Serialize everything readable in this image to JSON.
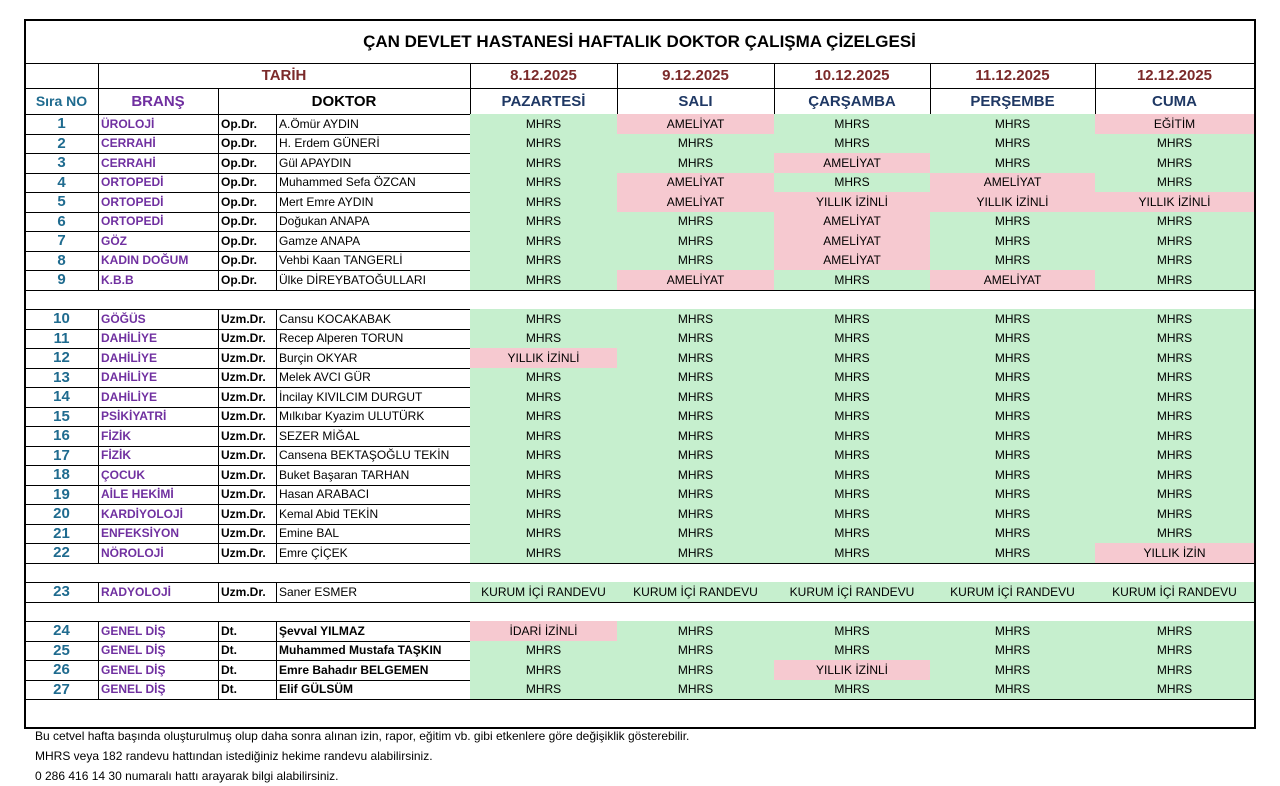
{
  "header": {
    "title": "ÇAN DEVLET HASTANESİ HAFTALIK DOKTOR ÇALIŞMA ÇİZELGESİ",
    "date_label": "TARİH",
    "dates": [
      "8.12.2025",
      "9.12.2025",
      "10.12.2025",
      "11.12.2025",
      "12.12.2025"
    ],
    "columns": [
      "Sıra NO",
      "BRANŞ",
      "DOKTOR"
    ],
    "days": [
      "PAZARTESİ",
      "SALI",
      "ÇARŞAMBA",
      "PERŞEMBE",
      "CUMA"
    ]
  },
  "colors": {
    "green": "#c6efce",
    "pink": "#f6c9d0"
  },
  "groups": [
    {
      "rows": [
        {
          "no": "1",
          "branch": "ÜROLOJİ",
          "title": "Op.Dr.",
          "name": "A.Ömür AYDIN",
          "cells": [
            "MHRS",
            "AMELİYAT",
            "MHRS",
            "MHRS",
            "EĞİTİM"
          ],
          "fills": [
            "green",
            "pink",
            "green",
            "green",
            "pink"
          ]
        },
        {
          "no": "2",
          "branch": "CERRAHİ",
          "title": "Op.Dr.",
          "name": "H. Erdem GÜNERİ",
          "cells": [
            "MHRS",
            "MHRS",
            "MHRS",
            "MHRS",
            "MHRS"
          ],
          "fills": [
            "green",
            "green",
            "green",
            "green",
            "green"
          ]
        },
        {
          "no": "3",
          "branch": "CERRAHİ",
          "title": "Op.Dr.",
          "name": "Gül APAYDIN",
          "cells": [
            "MHRS",
            "MHRS",
            "AMELİYAT",
            "MHRS",
            "MHRS"
          ],
          "fills": [
            "green",
            "green",
            "pink",
            "green",
            "green"
          ]
        },
        {
          "no": "4",
          "branch": "ORTOPEDİ",
          "title": "Op.Dr.",
          "name": "Muhammed Sefa ÖZCAN",
          "cells": [
            "MHRS",
            "AMELİYAT",
            "MHRS",
            "AMELİYAT",
            "MHRS"
          ],
          "fills": [
            "green",
            "pink",
            "green",
            "pink",
            "green"
          ]
        },
        {
          "no": "5",
          "branch": "ORTOPEDİ",
          "title": "Op.Dr.",
          "name": "Mert Emre AYDIN",
          "cells": [
            "MHRS",
            "AMELİYAT",
            "YILLIK İZİNLİ",
            "YILLIK İZİNLİ",
            "YILLIK İZİNLİ"
          ],
          "fills": [
            "green",
            "pink",
            "pink",
            "pink",
            "pink"
          ]
        },
        {
          "no": "6",
          "branch": "ORTOPEDİ",
          "title": "Op.Dr.",
          "name": "Doğukan ANAPA",
          "cells": [
            "MHRS",
            "MHRS",
            "AMELİYAT",
            "MHRS",
            "MHRS"
          ],
          "fills": [
            "green",
            "green",
            "pink",
            "green",
            "green"
          ]
        },
        {
          "no": "7",
          "branch": "GÖZ",
          "title": "Op.Dr.",
          "name": "Gamze ANAPA",
          "cells": [
            "MHRS",
            "MHRS",
            "AMELİYAT",
            "MHRS",
            "MHRS"
          ],
          "fills": [
            "green",
            "green",
            "pink",
            "green",
            "green"
          ]
        },
        {
          "no": "8",
          "branch": "KADIN DOĞUM",
          "title": "Op.Dr.",
          "name": "Vehbi Kaan TANGERLİ",
          "cells": [
            "MHRS",
            "MHRS",
            "AMELİYAT",
            "MHRS",
            "MHRS"
          ],
          "fills": [
            "green",
            "green",
            "pink",
            "green",
            "green"
          ]
        },
        {
          "no": "9",
          "branch": "K.B.B",
          "title": "Op.Dr.",
          "name": "Ülke DİREYBATOĞULLARI",
          "cells": [
            "MHRS",
            "AMELİYAT",
            "MHRS",
            "AMELİYAT",
            "MHRS"
          ],
          "fills": [
            "green",
            "pink",
            "green",
            "pink",
            "green"
          ]
        }
      ]
    },
    {
      "rows": [
        {
          "no": "10",
          "branch": "GÖĞÜS",
          "title": "Uzm.Dr.",
          "name": "Cansu KOCAKABAK",
          "cells": [
            "MHRS",
            "MHRS",
            "MHRS",
            "MHRS",
            "MHRS"
          ],
          "fills": [
            "green",
            "green",
            "green",
            "green",
            "green"
          ]
        },
        {
          "no": "11",
          "branch": "DAHİLİYE",
          "title": "Uzm.Dr.",
          "name": "Recep Alperen TORUN",
          "cells": [
            "MHRS",
            "MHRS",
            "MHRS",
            "MHRS",
            "MHRS"
          ],
          "fills": [
            "green",
            "green",
            "green",
            "green",
            "green"
          ]
        },
        {
          "no": "12",
          "branch": "DAHİLİYE",
          "title": "Uzm.Dr.",
          "name": "Burçin OKYAR",
          "cells": [
            "YILLIK İZİNLİ",
            "MHRS",
            "MHRS",
            "MHRS",
            "MHRS"
          ],
          "fills": [
            "pink",
            "green",
            "green",
            "green",
            "green"
          ]
        },
        {
          "no": "13",
          "branch": "DAHİLİYE",
          "title": "Uzm.Dr.",
          "name": "Melek AVCI GÜR",
          "cells": [
            "MHRS",
            "MHRS",
            "MHRS",
            "MHRS",
            "MHRS"
          ],
          "fills": [
            "green",
            "green",
            "green",
            "green",
            "green"
          ]
        },
        {
          "no": "14",
          "branch": "DAHİLİYE",
          "title": "Uzm.Dr.",
          "name": "İncilay KIVILCIM DURGUT",
          "cells": [
            "MHRS",
            "MHRS",
            "MHRS",
            "MHRS",
            "MHRS"
          ],
          "fills": [
            "green",
            "green",
            "green",
            "green",
            "green"
          ]
        },
        {
          "no": "15",
          "branch": "PSİKİYATRİ",
          "title": "Uzm.Dr.",
          "name": "Mılkıbar Kyazim ULUTÜRK",
          "cells": [
            "MHRS",
            "MHRS",
            "MHRS",
            "MHRS",
            "MHRS"
          ],
          "fills": [
            "green",
            "green",
            "green",
            "green",
            "green"
          ]
        },
        {
          "no": "16",
          "branch": "FİZİK",
          "title": "Uzm.Dr.",
          "name": "SEZER MİĞAL",
          "cells": [
            "MHRS",
            "MHRS",
            "MHRS",
            "MHRS",
            "MHRS"
          ],
          "fills": [
            "green",
            "green",
            "green",
            "green",
            "green"
          ]
        },
        {
          "no": "17",
          "branch": "FİZİK",
          "title": "Uzm.Dr.",
          "name": "Cansena BEKTAŞOĞLU TEKİN",
          "cells": [
            "MHRS",
            "MHRS",
            "MHRS",
            "MHRS",
            "MHRS"
          ],
          "fills": [
            "green",
            "green",
            "green",
            "green",
            "green"
          ]
        },
        {
          "no": "18",
          "branch": "ÇOCUK",
          "title": "Uzm.Dr.",
          "name": "Buket Başaran TARHAN",
          "cells": [
            "MHRS",
            "MHRS",
            "MHRS",
            "MHRS",
            "MHRS"
          ],
          "fills": [
            "green",
            "green",
            "green",
            "green",
            "green"
          ]
        },
        {
          "no": "19",
          "branch": "AİLE HEKİMİ",
          "title": "Uzm.Dr.",
          "name": "Hasan ARABACI",
          "cells": [
            "MHRS",
            "MHRS",
            "MHRS",
            "MHRS",
            "MHRS"
          ],
          "fills": [
            "green",
            "green",
            "green",
            "green",
            "green"
          ]
        },
        {
          "no": "20",
          "branch": "KARDİYOLOJİ",
          "title": "Uzm.Dr.",
          "name": "Kemal Abid TEKİN",
          "cells": [
            "MHRS",
            "MHRS",
            "MHRS",
            "MHRS",
            "MHRS"
          ],
          "fills": [
            "green",
            "green",
            "green",
            "green",
            "green"
          ]
        },
        {
          "no": "21",
          "branch": "ENFEKSİYON",
          "title": "Uzm.Dr.",
          "name": "Emine BAL",
          "cells": [
            "MHRS",
            "MHRS",
            "MHRS",
            "MHRS",
            "MHRS"
          ],
          "fills": [
            "green",
            "green",
            "green",
            "green",
            "green"
          ]
        },
        {
          "no": "22",
          "branch": "NÖROLOJİ",
          "title": "Uzm.Dr.",
          "name": "Emre ÇİÇEK",
          "cells": [
            "MHRS",
            "MHRS",
            "MHRS",
            "MHRS",
            "YILLIK İZİN"
          ],
          "fills": [
            "green",
            "green",
            "green",
            "green",
            "pink"
          ]
        }
      ]
    },
    {
      "rows": [
        {
          "no": "23",
          "branch": "RADYOLOJİ",
          "title": "Uzm.Dr.",
          "name": "Saner ESMER",
          "cells": [
            "KURUM İÇİ RANDEVU",
            "KURUM İÇİ RANDEVU",
            "KURUM İÇİ RANDEVU",
            "KURUM İÇİ RANDEVU",
            "KURUM İÇİ RANDEVU"
          ],
          "fills": [
            "green",
            "green",
            "green",
            "green",
            "green"
          ]
        }
      ]
    },
    {
      "rows": [
        {
          "no": "24",
          "branch": "GENEL DİŞ",
          "title": "Dt.",
          "name": "Şevval YILMAZ",
          "cells": [
            "İDARİ İZİNLİ",
            "MHRS",
            "MHRS",
            "MHRS",
            "MHRS"
          ],
          "fills": [
            "pink",
            "green",
            "green",
            "green",
            "green"
          ]
        },
        {
          "no": "25",
          "branch": "GENEL DİŞ",
          "title": "Dt.",
          "name": "Muhammed Mustafa TAŞKIN",
          "cells": [
            "MHRS",
            "MHRS",
            "MHRS",
            "MHRS",
            "MHRS"
          ],
          "fills": [
            "green",
            "green",
            "green",
            "green",
            "green"
          ]
        },
        {
          "no": "26",
          "branch": "GENEL DİŞ",
          "title": "Dt.",
          "name": "Emre Bahadır BELGEMEN",
          "cells": [
            "MHRS",
            "MHRS",
            "YILLIK İZİNLİ",
            "MHRS",
            "MHRS"
          ],
          "fills": [
            "green",
            "green",
            "pink",
            "green",
            "green"
          ]
        },
        {
          "no": "27",
          "branch": "GENEL DİŞ",
          "title": "Dt.",
          "name": "Elif GÜLSÜM",
          "cells": [
            "MHRS",
            "MHRS",
            "MHRS",
            "MHRS",
            "MHRS"
          ],
          "fills": [
            "green",
            "green",
            "green",
            "green",
            "green"
          ]
        }
      ]
    }
  ],
  "footer": [
    "Bu cetvel hafta başında oluşturulmuş olup daha sonra alınan izin, rapor, eğitim vb. gibi etkenlere göre değişiklik gösterebilir.",
    "MHRS veya 182 randevu hattından istediğiniz hekime randevu alabilirsiniz.",
    "0 286 416 14 30 numaralı hattı arayarak bilgi alabilirsiniz."
  ]
}
